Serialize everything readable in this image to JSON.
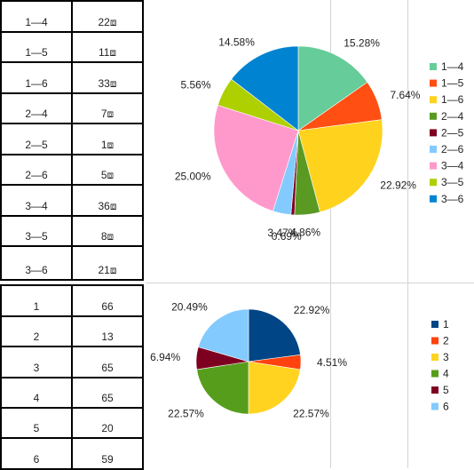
{
  "table_top": {
    "rows": [
      {
        "label": "1—4",
        "value": "22⧈"
      },
      {
        "label": "1—5",
        "value": "11⧈"
      },
      {
        "label": "1—6",
        "value": "33⧈"
      },
      {
        "label": "2—4",
        "value": "7⧈"
      },
      {
        "label": "2—5",
        "value": "1⧈"
      },
      {
        "label": "2—6",
        "value": "5⧈"
      },
      {
        "label": "3—4",
        "value": "36⧈"
      },
      {
        "label": "3—5",
        "value": "8⧈"
      },
      {
        "label": "3—6",
        "value": "21⧈"
      }
    ]
  },
  "table_bottom": {
    "rows": [
      {
        "label": "1",
        "value": "66"
      },
      {
        "label": "2",
        "value": "13"
      },
      {
        "label": "3",
        "value": "65"
      },
      {
        "label": "4",
        "value": "65"
      },
      {
        "label": "5",
        "value": "20"
      },
      {
        "label": "6",
        "value": "59"
      }
    ]
  },
  "chart_data": [
    {
      "type": "pie",
      "title": "",
      "legend_position": "right",
      "categories": [
        "1—4",
        "1—5",
        "1—6",
        "2—4",
        "2—5",
        "2—6",
        "3—4",
        "3—5",
        "3—6"
      ],
      "values": [
        15.28,
        7.64,
        22.92,
        4.86,
        0.69,
        3.47,
        25.0,
        5.56,
        14.58
      ],
      "labels": [
        "15.28%",
        "7.64%",
        "22.92%",
        "4.86%",
        "0.69%",
        "3.47%",
        "25.00%",
        "5.56%",
        "14.58%"
      ],
      "colors": [
        "#66cc99",
        "#ff4f12",
        "#ffd21e",
        "#5a9a22",
        "#7e0021",
        "#83caff",
        "#ff99cc",
        "#aecf00",
        "#0084d1"
      ]
    },
    {
      "type": "pie",
      "title": "",
      "legend_position": "right",
      "categories": [
        "1",
        "2",
        "3",
        "4",
        "5",
        "6"
      ],
      "values": [
        22.92,
        4.51,
        22.57,
        22.57,
        6.94,
        20.49
      ],
      "labels": [
        "22.92%",
        "4.51%",
        "22.57%",
        "22.57%",
        "6.94%",
        "20.49%"
      ],
      "colors": [
        "#004586",
        "#ff420e",
        "#ffd320",
        "#579d1c",
        "#7e0021",
        "#83caff"
      ]
    }
  ]
}
